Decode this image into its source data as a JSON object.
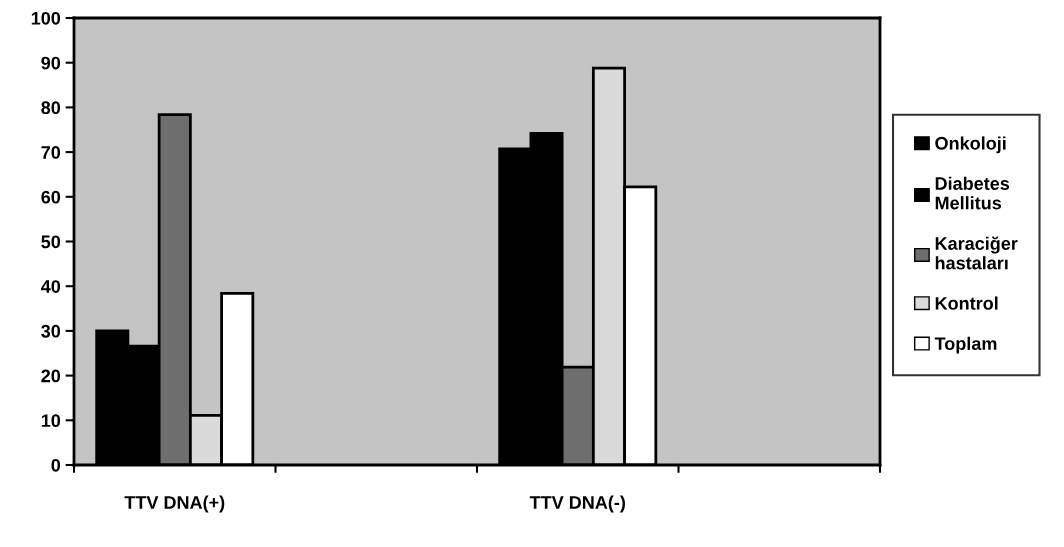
{
  "chart_data": {
    "type": "bar",
    "categories": [
      "TTV DNA(+)",
      null,
      "TTV DNA(-)",
      null
    ],
    "series": [
      {
        "name": "Onkoloji",
        "color": "#000000",
        "values": [
          30.0,
          null,
          70.7,
          null
        ]
      },
      {
        "name": "Diabetes Mellitus",
        "color": "#000000",
        "values": [
          26.6,
          null,
          74.2,
          null
        ]
      },
      {
        "name": "Karaciğer hastaları",
        "color": "#6e6e6e",
        "values": [
          78.4,
          null,
          21.9,
          null
        ]
      },
      {
        "name": "Kontrol",
        "color": "#dadada",
        "values": [
          11.1,
          null,
          88.8,
          null
        ]
      },
      {
        "name": "Toplam",
        "color": "#ffffff",
        "values": [
          38.4,
          null,
          62.2,
          null
        ]
      }
    ],
    "ylim": [
      0,
      100
    ],
    "yticks": [
      0,
      10,
      20,
      30,
      40,
      50,
      60,
      70,
      80,
      90,
      100
    ],
    "grid": false,
    "legend": "right"
  }
}
